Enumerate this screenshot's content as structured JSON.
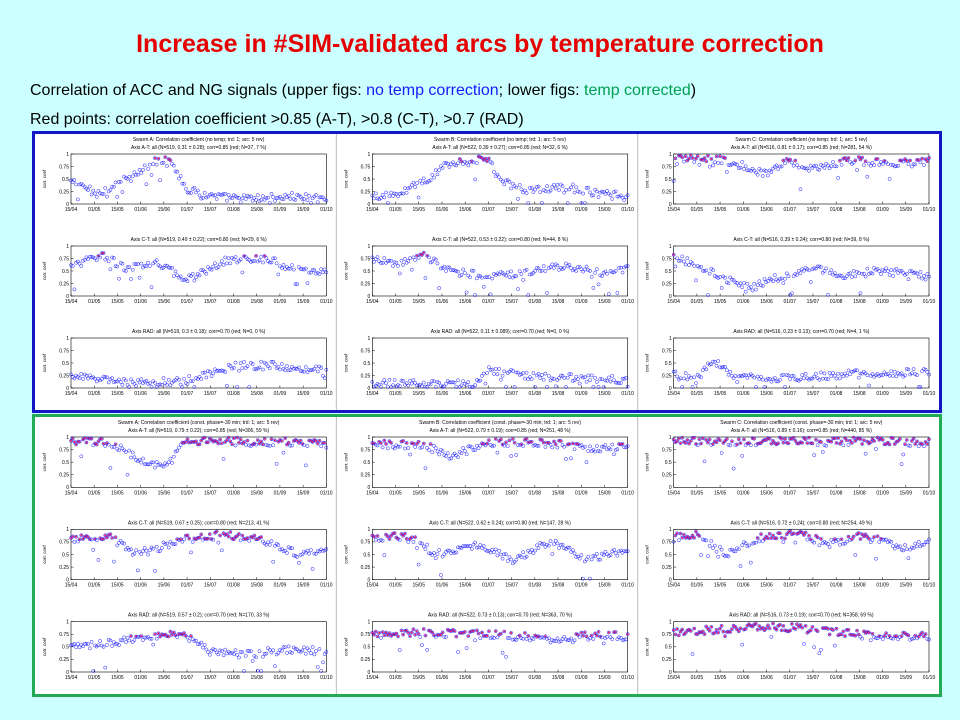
{
  "header": {
    "title": "Increase in #SIM-validated arcs by temperature correction",
    "line1_pre": "Correlation of ACC and NG signals (upper figs: ",
    "line1_blue": "no temp correction",
    "line1_mid": "; lower figs: ",
    "line1_green": "temp corrected",
    "line1_post": ")",
    "line2": "Red points: correlation coefficient >0.85 (A-T), >0.8 (C-T), >0.7 (RAD)"
  },
  "colors": {
    "title": "#e60000",
    "background": "#ccffff",
    "upper_border": "#1515c8",
    "lower_border": "#22aa55",
    "points": "#1a1aff",
    "highlight": "#e0206a"
  },
  "chart_data": {
    "type": "scatter",
    "x_ticks": [
      "15/04",
      "01/05",
      "15/05",
      "01/06",
      "15/06",
      "01/07",
      "15/07",
      "01/08",
      "15/08",
      "01/09",
      "15/09",
      "01/10"
    ],
    "y_ticks": [
      "0",
      "0.25",
      "0.5",
      "0.75",
      "1"
    ],
    "ylim": [
      0,
      1
    ],
    "ylabel": "corr. coef",
    "groups": [
      {
        "id": "upper",
        "panels": [
          {
            "title": "Swarm A: Correlation coefficient (no temp; trd: 1; arc: 5 rev)",
            "subtitle": "Axis A-T: all (N=519, 0.31 ± 0.28); corr=0.85 (red; N=37, 7 %)",
            "profile": [
              [
                0,
                0.45
              ],
              [
                0.05,
                0.35
              ],
              [
                0.1,
                0.2
              ],
              [
                0.18,
                0.4
              ],
              [
                0.26,
                0.6
              ],
              [
                0.33,
                0.85
              ],
              [
                0.39,
                0.9
              ],
              [
                0.45,
                0.3
              ],
              [
                0.55,
                0.15
              ],
              [
                0.7,
                0.1
              ],
              [
                0.85,
                0.15
              ],
              [
                1,
                0.1
              ]
            ],
            "threshold": 0.85
          },
          {
            "title": "",
            "subtitle": "Axis C-T: all (N=519, 0.49 ± 0.22); corr=0.80 (red; N=29, 6 %)",
            "profile": [
              [
                0,
                0.6
              ],
              [
                0.12,
                0.8
              ],
              [
                0.22,
                0.55
              ],
              [
                0.35,
                0.65
              ],
              [
                0.45,
                0.3
              ],
              [
                0.6,
                0.7
              ],
              [
                0.75,
                0.75
              ],
              [
                0.85,
                0.6
              ],
              [
                1,
                0.45
              ]
            ],
            "threshold": 0.8
          },
          {
            "title": "",
            "subtitle": "Axis RAD: all (N=519, 0.3 ± 0.18); corr=0.70 (red; N=0, 0 %)",
            "profile": [
              [
                0,
                0.25
              ],
              [
                0.15,
                0.15
              ],
              [
                0.3,
                0.1
              ],
              [
                0.45,
                0.15
              ],
              [
                0.55,
                0.3
              ],
              [
                0.65,
                0.45
              ],
              [
                0.8,
                0.45
              ],
              [
                1,
                0.35
              ]
            ],
            "threshold": 0.7
          },
          {
            "title": "Swarm B: Correlation coefficient (no temp; trd: 1; arc: 5 rev)",
            "subtitle": "Axis A-T: all (N=522, 0.39 ± 0.27); corr=0.85 (red; N=32, 6 %)",
            "profile": [
              [
                0,
                0.15
              ],
              [
                0.1,
                0.2
              ],
              [
                0.2,
                0.45
              ],
              [
                0.3,
                0.8
              ],
              [
                0.45,
                0.9
              ],
              [
                0.5,
                0.5
              ],
              [
                0.6,
                0.25
              ],
              [
                0.75,
                0.35
              ],
              [
                0.9,
                0.2
              ],
              [
                1,
                0.15
              ]
            ],
            "threshold": 0.85
          },
          {
            "title": "",
            "subtitle": "Axis C-T: all (N=522, 0.53 ± 0.22); corr=0.80 (red; N=44, 8 %)",
            "profile": [
              [
                0,
                0.75
              ],
              [
                0.1,
                0.65
              ],
              [
                0.2,
                0.8
              ],
              [
                0.3,
                0.5
              ],
              [
                0.45,
                0.4
              ],
              [
                0.6,
                0.45
              ],
              [
                0.75,
                0.6
              ],
              [
                0.9,
                0.45
              ],
              [
                1,
                0.55
              ]
            ],
            "threshold": 0.8
          },
          {
            "title": "",
            "subtitle": "Axis RAD: all (N=522, 0.11 ± 0.089); corr=0.70 (red; N=0, 0 %)",
            "profile": [
              [
                0,
                0.1
              ],
              [
                0.2,
                0.08
              ],
              [
                0.4,
                0.1
              ],
              [
                0.45,
                0.35
              ],
              [
                0.6,
                0.25
              ],
              [
                0.8,
                0.2
              ],
              [
                1,
                0.15
              ]
            ],
            "threshold": 0.7
          },
          {
            "title": "Swarm C: Correlation coefficient (no temp; trd: 1; arc: 5 rev)",
            "subtitle": "Axis A-T: all (N=516, 0.81 ± 0.17); corr=0.85 (red; N=281, 54 %)",
            "profile": [
              [
                0,
                0.9
              ],
              [
                0.15,
                0.92
              ],
              [
                0.25,
                0.8
              ],
              [
                0.35,
                0.6
              ],
              [
                0.45,
                0.85
              ],
              [
                0.55,
                0.7
              ],
              [
                0.7,
                0.88
              ],
              [
                0.85,
                0.8
              ],
              [
                1,
                0.85
              ]
            ],
            "threshold": 0.85
          },
          {
            "title": "",
            "subtitle": "Axis C-T: all (N=516, 0.39 ± 0.24); corr=0.80 (red; N=39, 8 %)",
            "profile": [
              [
                0,
                0.8
              ],
              [
                0.1,
                0.6
              ],
              [
                0.2,
                0.35
              ],
              [
                0.3,
                0.15
              ],
              [
                0.4,
                0.35
              ],
              [
                0.55,
                0.6
              ],
              [
                0.65,
                0.4
              ],
              [
                0.8,
                0.5
              ],
              [
                1,
                0.4
              ]
            ],
            "threshold": 0.8
          },
          {
            "title": "",
            "subtitle": "Axis RAD: all (N=516, 0.23 ± 0.13); corr=0.70 (red; N=4, 1 %)",
            "profile": [
              [
                0,
                0.3
              ],
              [
                0.1,
                0.2
              ],
              [
                0.15,
                0.55
              ],
              [
                0.25,
                0.2
              ],
              [
                0.5,
                0.2
              ],
              [
                0.75,
                0.3
              ],
              [
                1,
                0.3
              ]
            ],
            "threshold": 0.7
          }
        ]
      },
      {
        "id": "lower",
        "panels": [
          {
            "title": "Swarm A: Correlation coefficient (const. phase=-30 min; trd: 1; arc: 5 rev)",
            "subtitle": "Axis A-T: all (N=519, 0.79 ± 0.22); corr=0.85 (red; N=306, 59 %)",
            "profile": [
              [
                0,
                0.9
              ],
              [
                0.15,
                0.9
              ],
              [
                0.25,
                0.6
              ],
              [
                0.35,
                0.4
              ],
              [
                0.45,
                0.9
              ],
              [
                0.6,
                0.92
              ],
              [
                0.8,
                0.9
              ],
              [
                1,
                0.88
              ]
            ],
            "threshold": 0.85
          },
          {
            "title": "",
            "subtitle": "Axis C-T: all (N=519, 0.67 ± 0.25); corr=0.80 (red; N=213, 41 %)",
            "profile": [
              [
                0,
                0.8
              ],
              [
                0.15,
                0.85
              ],
              [
                0.25,
                0.5
              ],
              [
                0.35,
                0.65
              ],
              [
                0.45,
                0.8
              ],
              [
                0.6,
                0.9
              ],
              [
                0.75,
                0.8
              ],
              [
                0.9,
                0.5
              ],
              [
                1,
                0.6
              ]
            ],
            "threshold": 0.8
          },
          {
            "title": "",
            "subtitle": "Axis RAD: all (N=519, 0.57 ± 0.2); corr=0.70 (red; N=170, 33 %)",
            "profile": [
              [
                0,
                0.5
              ],
              [
                0.2,
                0.6
              ],
              [
                0.35,
                0.75
              ],
              [
                0.45,
                0.72
              ],
              [
                0.55,
                0.4
              ],
              [
                0.7,
                0.35
              ],
              [
                0.85,
                0.45
              ],
              [
                1,
                0.4
              ]
            ],
            "threshold": 0.7
          },
          {
            "title": "Swarm B: Correlation coefficient (const. phase=-30 min; trd: 1; arc: 5 rev)",
            "subtitle": "Axis A-T: all (N=522, 0.79 ± 0.19); corr=0.85 (red; N=251, 48 %)",
            "profile": [
              [
                0,
                0.85
              ],
              [
                0.2,
                0.85
              ],
              [
                0.3,
                0.6
              ],
              [
                0.45,
                0.88
              ],
              [
                0.6,
                0.9
              ],
              [
                0.75,
                0.85
              ],
              [
                0.9,
                0.75
              ],
              [
                1,
                0.85
              ]
            ],
            "threshold": 0.85
          },
          {
            "title": "",
            "subtitle": "Axis C-T: all (N=522, 0.62 ± 0.24); corr=0.80 (red; N=147, 28 %)",
            "profile": [
              [
                0,
                0.85
              ],
              [
                0.15,
                0.85
              ],
              [
                0.25,
                0.5
              ],
              [
                0.4,
                0.7
              ],
              [
                0.55,
                0.4
              ],
              [
                0.7,
                0.75
              ],
              [
                0.85,
                0.4
              ],
              [
                1,
                0.6
              ]
            ],
            "threshold": 0.8
          },
          {
            "title": "",
            "subtitle": "Axis RAD: all (N=522, 0.73 ± 0.13); corr=0.70 (red; N=363, 70 %)",
            "profile": [
              [
                0,
                0.75
              ],
              [
                0.2,
                0.78
              ],
              [
                0.4,
                0.75
              ],
              [
                0.55,
                0.72
              ],
              [
                0.7,
                0.65
              ],
              [
                0.85,
                0.72
              ],
              [
                1,
                0.72
              ]
            ],
            "threshold": 0.7
          },
          {
            "title": "Swarm C: Correlation coefficient (const. phase=-30 min; trd: 1; arc: 5 rev)",
            "subtitle": "Axis A-T: all (N=516, 0.89 ± 0.16); corr=0.85 (red; N=440, 85 %)",
            "profile": [
              [
                0,
                0.92
              ],
              [
                0.2,
                0.9
              ],
              [
                0.35,
                0.92
              ],
              [
                0.5,
                0.93
              ],
              [
                0.6,
                0.9
              ],
              [
                0.75,
                0.92
              ],
              [
                0.9,
                0.9
              ],
              [
                1,
                0.88
              ]
            ],
            "threshold": 0.85
          },
          {
            "title": "",
            "subtitle": "Axis C-T: all (N=516, 0.72 ± 0.24); corr=0.80 (red; N=254, 49 %)",
            "profile": [
              [
                0,
                0.85
              ],
              [
                0.1,
                0.9
              ],
              [
                0.2,
                0.5
              ],
              [
                0.35,
                0.85
              ],
              [
                0.5,
                0.92
              ],
              [
                0.6,
                0.7
              ],
              [
                0.75,
                0.88
              ],
              [
                0.9,
                0.6
              ],
              [
                1,
                0.75
              ]
            ],
            "threshold": 0.8
          },
          {
            "title": "",
            "subtitle": "Axis RAD: all (N=516, 0.73 ± 0.19); corr=0.70 (red; N=358, 69 %)",
            "profile": [
              [
                0,
                0.8
              ],
              [
                0.2,
                0.85
              ],
              [
                0.4,
                0.9
              ],
              [
                0.55,
                0.85
              ],
              [
                0.7,
                0.75
              ],
              [
                0.85,
                0.7
              ],
              [
                1,
                0.72
              ]
            ],
            "threshold": 0.7
          }
        ]
      }
    ]
  }
}
